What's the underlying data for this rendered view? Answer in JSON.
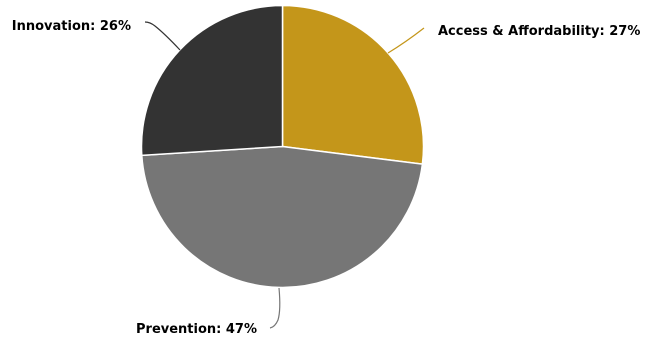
{
  "chart_data": {
    "type": "pie",
    "title": "",
    "start_angle_deg": 0,
    "direction": "clockwise",
    "slices": [
      {
        "label": "Access & Affordability",
        "value": 27,
        "display": "Access & Affordability: 27%",
        "color": "#c4961a"
      },
      {
        "label": "Prevention",
        "value": 47,
        "display": "Prevention: 47%",
        "color": "#767676"
      },
      {
        "label": "Innovation",
        "value": 26,
        "display": "Innovation: 26%",
        "color": "#333333"
      }
    ],
    "legend": "none",
    "labels": "outside with leader lines"
  }
}
